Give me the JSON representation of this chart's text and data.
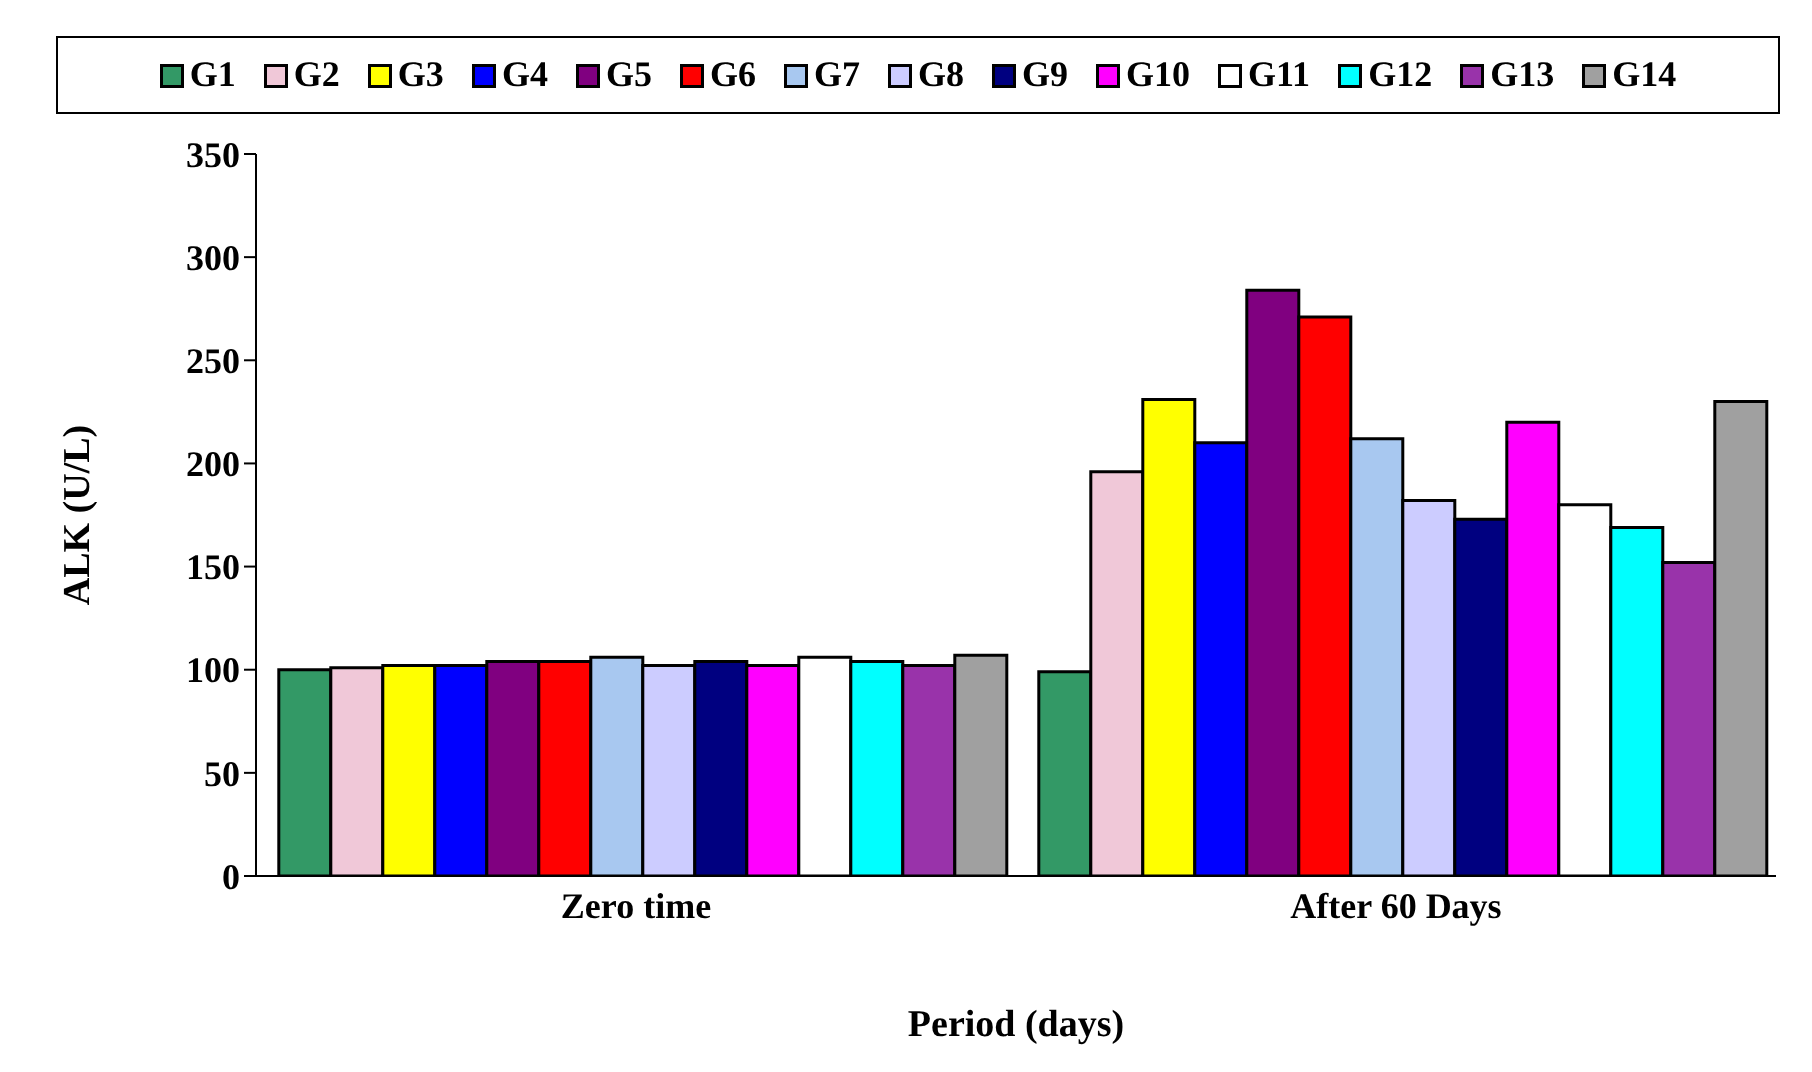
{
  "chart_data": {
    "type": "bar",
    "xlabel": "Period (days)",
    "ylabel": "ALK (U/L)",
    "categories": [
      "Zero time",
      "After 60 Days"
    ],
    "ylim": [
      0,
      350
    ],
    "yticks": [
      0,
      50,
      100,
      150,
      200,
      250,
      300,
      350
    ],
    "legend": "top",
    "series": [
      {
        "name": "G1",
        "color": "#339966",
        "values": [
          100,
          99
        ]
      },
      {
        "name": "G2",
        "color": "#f0c8d8",
        "values": [
          101,
          196
        ]
      },
      {
        "name": "G3",
        "color": "#ffff00",
        "values": [
          102,
          231
        ]
      },
      {
        "name": "G4",
        "color": "#0000ff",
        "values": [
          102,
          210
        ]
      },
      {
        "name": "G5",
        "color": "#800080",
        "values": [
          104,
          284
        ]
      },
      {
        "name": "G6",
        "color": "#ff0000",
        "values": [
          104,
          271
        ]
      },
      {
        "name": "G7",
        "color": "#a8c8f0",
        "values": [
          106,
          212
        ]
      },
      {
        "name": "G8",
        "color": "#ccccff",
        "values": [
          102,
          182
        ]
      },
      {
        "name": "G9",
        "color": "#000080",
        "values": [
          104,
          173
        ]
      },
      {
        "name": "G10",
        "color": "#ff00ff",
        "values": [
          102,
          220
        ]
      },
      {
        "name": "G11",
        "color": "#ffffff",
        "values": [
          106,
          180
        ]
      },
      {
        "name": "G12",
        "color": "#00ffff",
        "values": [
          104,
          169
        ]
      },
      {
        "name": "G13",
        "color": "#9933aa",
        "values": [
          102,
          152
        ]
      },
      {
        "name": "G14",
        "color": "#a0a0a0",
        "values": [
          107,
          230
        ]
      }
    ]
  }
}
